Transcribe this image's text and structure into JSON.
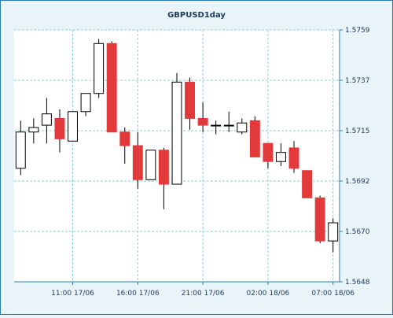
{
  "colors": {
    "background": "#e8f4f8",
    "plot_background": "#ffffff",
    "border": "#2a7ab0",
    "grid": "#8fd0d6",
    "bull_fill": "#ffffff",
    "bear_fill": "#e23a3a",
    "wick": "#000000",
    "text": "#1f3a5c"
  },
  "chart_data": {
    "type": "candlestick",
    "title": "GBPUSD1day",
    "xlabel": "",
    "ylabel": "",
    "ylim": [
      1.5648,
      1.5759
    ],
    "y_ticks": [
      "1.5759",
      "1.5737",
      "1.5715",
      "1.5692",
      "1.5670",
      "1.5648"
    ],
    "x_ticks": [
      {
        "index": 4.5,
        "label": "11:00 17/06"
      },
      {
        "index": 9.5,
        "label": "16:00 17/06"
      },
      {
        "index": 14.5,
        "label": "21:00 17/06"
      },
      {
        "index": 19.5,
        "label": "02:00 18/06"
      },
      {
        "index": 24.5,
        "label": "07:00 18/06"
      }
    ],
    "grid": true,
    "candles": [
      {
        "open": 1.5698,
        "high": 1.5719,
        "low": 1.5695,
        "close": 1.5714
      },
      {
        "open": 1.5714,
        "high": 1.572,
        "low": 1.5709,
        "close": 1.5716
      },
      {
        "open": 1.5717,
        "high": 1.5729,
        "low": 1.5709,
        "close": 1.5722
      },
      {
        "open": 1.572,
        "high": 1.5724,
        "low": 1.5705,
        "close": 1.5711
      },
      {
        "open": 1.571,
        "high": 1.5723,
        "low": 1.571,
        "close": 1.5723
      },
      {
        "open": 1.5723,
        "high": 1.5731,
        "low": 1.5721,
        "close": 1.5731
      },
      {
        "open": 1.5731,
        "high": 1.5755,
        "low": 1.5729,
        "close": 1.5753
      },
      {
        "open": 1.5753,
        "high": 1.5754,
        "low": 1.5714,
        "close": 1.5714
      },
      {
        "open": 1.5714,
        "high": 1.5716,
        "low": 1.57,
        "close": 1.5708
      },
      {
        "open": 1.5708,
        "high": 1.5714,
        "low": 1.5689,
        "close": 1.5693
      },
      {
        "open": 1.5693,
        "high": 1.5706,
        "low": 1.5693,
        "close": 1.5706
      },
      {
        "open": 1.5706,
        "high": 1.5707,
        "low": 1.568,
        "close": 1.5691
      },
      {
        "open": 1.5691,
        "high": 1.574,
        "low": 1.5691,
        "close": 1.5736
      },
      {
        "open": 1.5736,
        "high": 1.5738,
        "low": 1.5715,
        "close": 1.572
      },
      {
        "open": 1.572,
        "high": 1.5727,
        "low": 1.5714,
        "close": 1.5717
      },
      {
        "open": 1.5717,
        "high": 1.5719,
        "low": 1.5713,
        "close": 1.5717
      },
      {
        "open": 1.5717,
        "high": 1.5723,
        "low": 1.5714,
        "close": 1.5717
      },
      {
        "open": 1.5714,
        "high": 1.572,
        "low": 1.5713,
        "close": 1.5718
      },
      {
        "open": 1.5719,
        "high": 1.5721,
        "low": 1.5703,
        "close": 1.5703
      },
      {
        "open": 1.5709,
        "high": 1.5709,
        "low": 1.5698,
        "close": 1.5701
      },
      {
        "open": 1.5701,
        "high": 1.5709,
        "low": 1.5699,
        "close": 1.5705
      },
      {
        "open": 1.5707,
        "high": 1.571,
        "low": 1.5696,
        "close": 1.5698
      },
      {
        "open": 1.5697,
        "high": 1.5697,
        "low": 1.5685,
        "close": 1.5685
      },
      {
        "open": 1.5685,
        "high": 1.5686,
        "low": 1.5665,
        "close": 1.5666
      },
      {
        "open": 1.5666,
        "high": 1.5676,
        "low": 1.5661,
        "close": 1.5674
      }
    ]
  }
}
